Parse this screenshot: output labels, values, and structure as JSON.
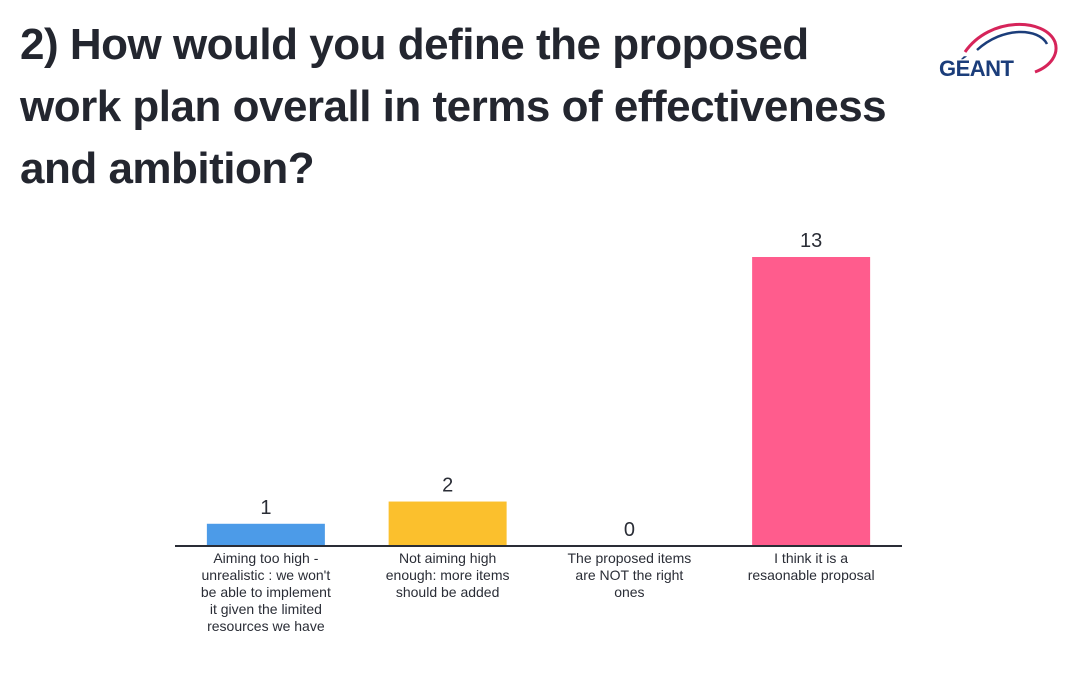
{
  "title_lines": [
    "2) How would you define the proposed",
    "work plan overall in terms of effectiveness",
    "and ambition?"
  ],
  "logo": {
    "text": "GÉANT",
    "color": "#1b3d7a",
    "swoosh_color": "#d6245a"
  },
  "chart_data": {
    "type": "bar",
    "categories": [
      "Aiming too high - unrealistic : we won't be able to implement it given the limited resources we have",
      "Not aiming high enough: more items should be added",
      "The proposed items are NOT the right ones",
      "I think it is a resaonable proposal"
    ],
    "values": [
      1,
      2,
      0,
      13
    ],
    "colors": [
      "#4c9be8",
      "#fbc02d",
      "#9e9e9e",
      "#ff5c8d"
    ],
    "value_labels": [
      "1",
      "2",
      "0",
      "13"
    ],
    "grid": false,
    "legend": "none"
  }
}
